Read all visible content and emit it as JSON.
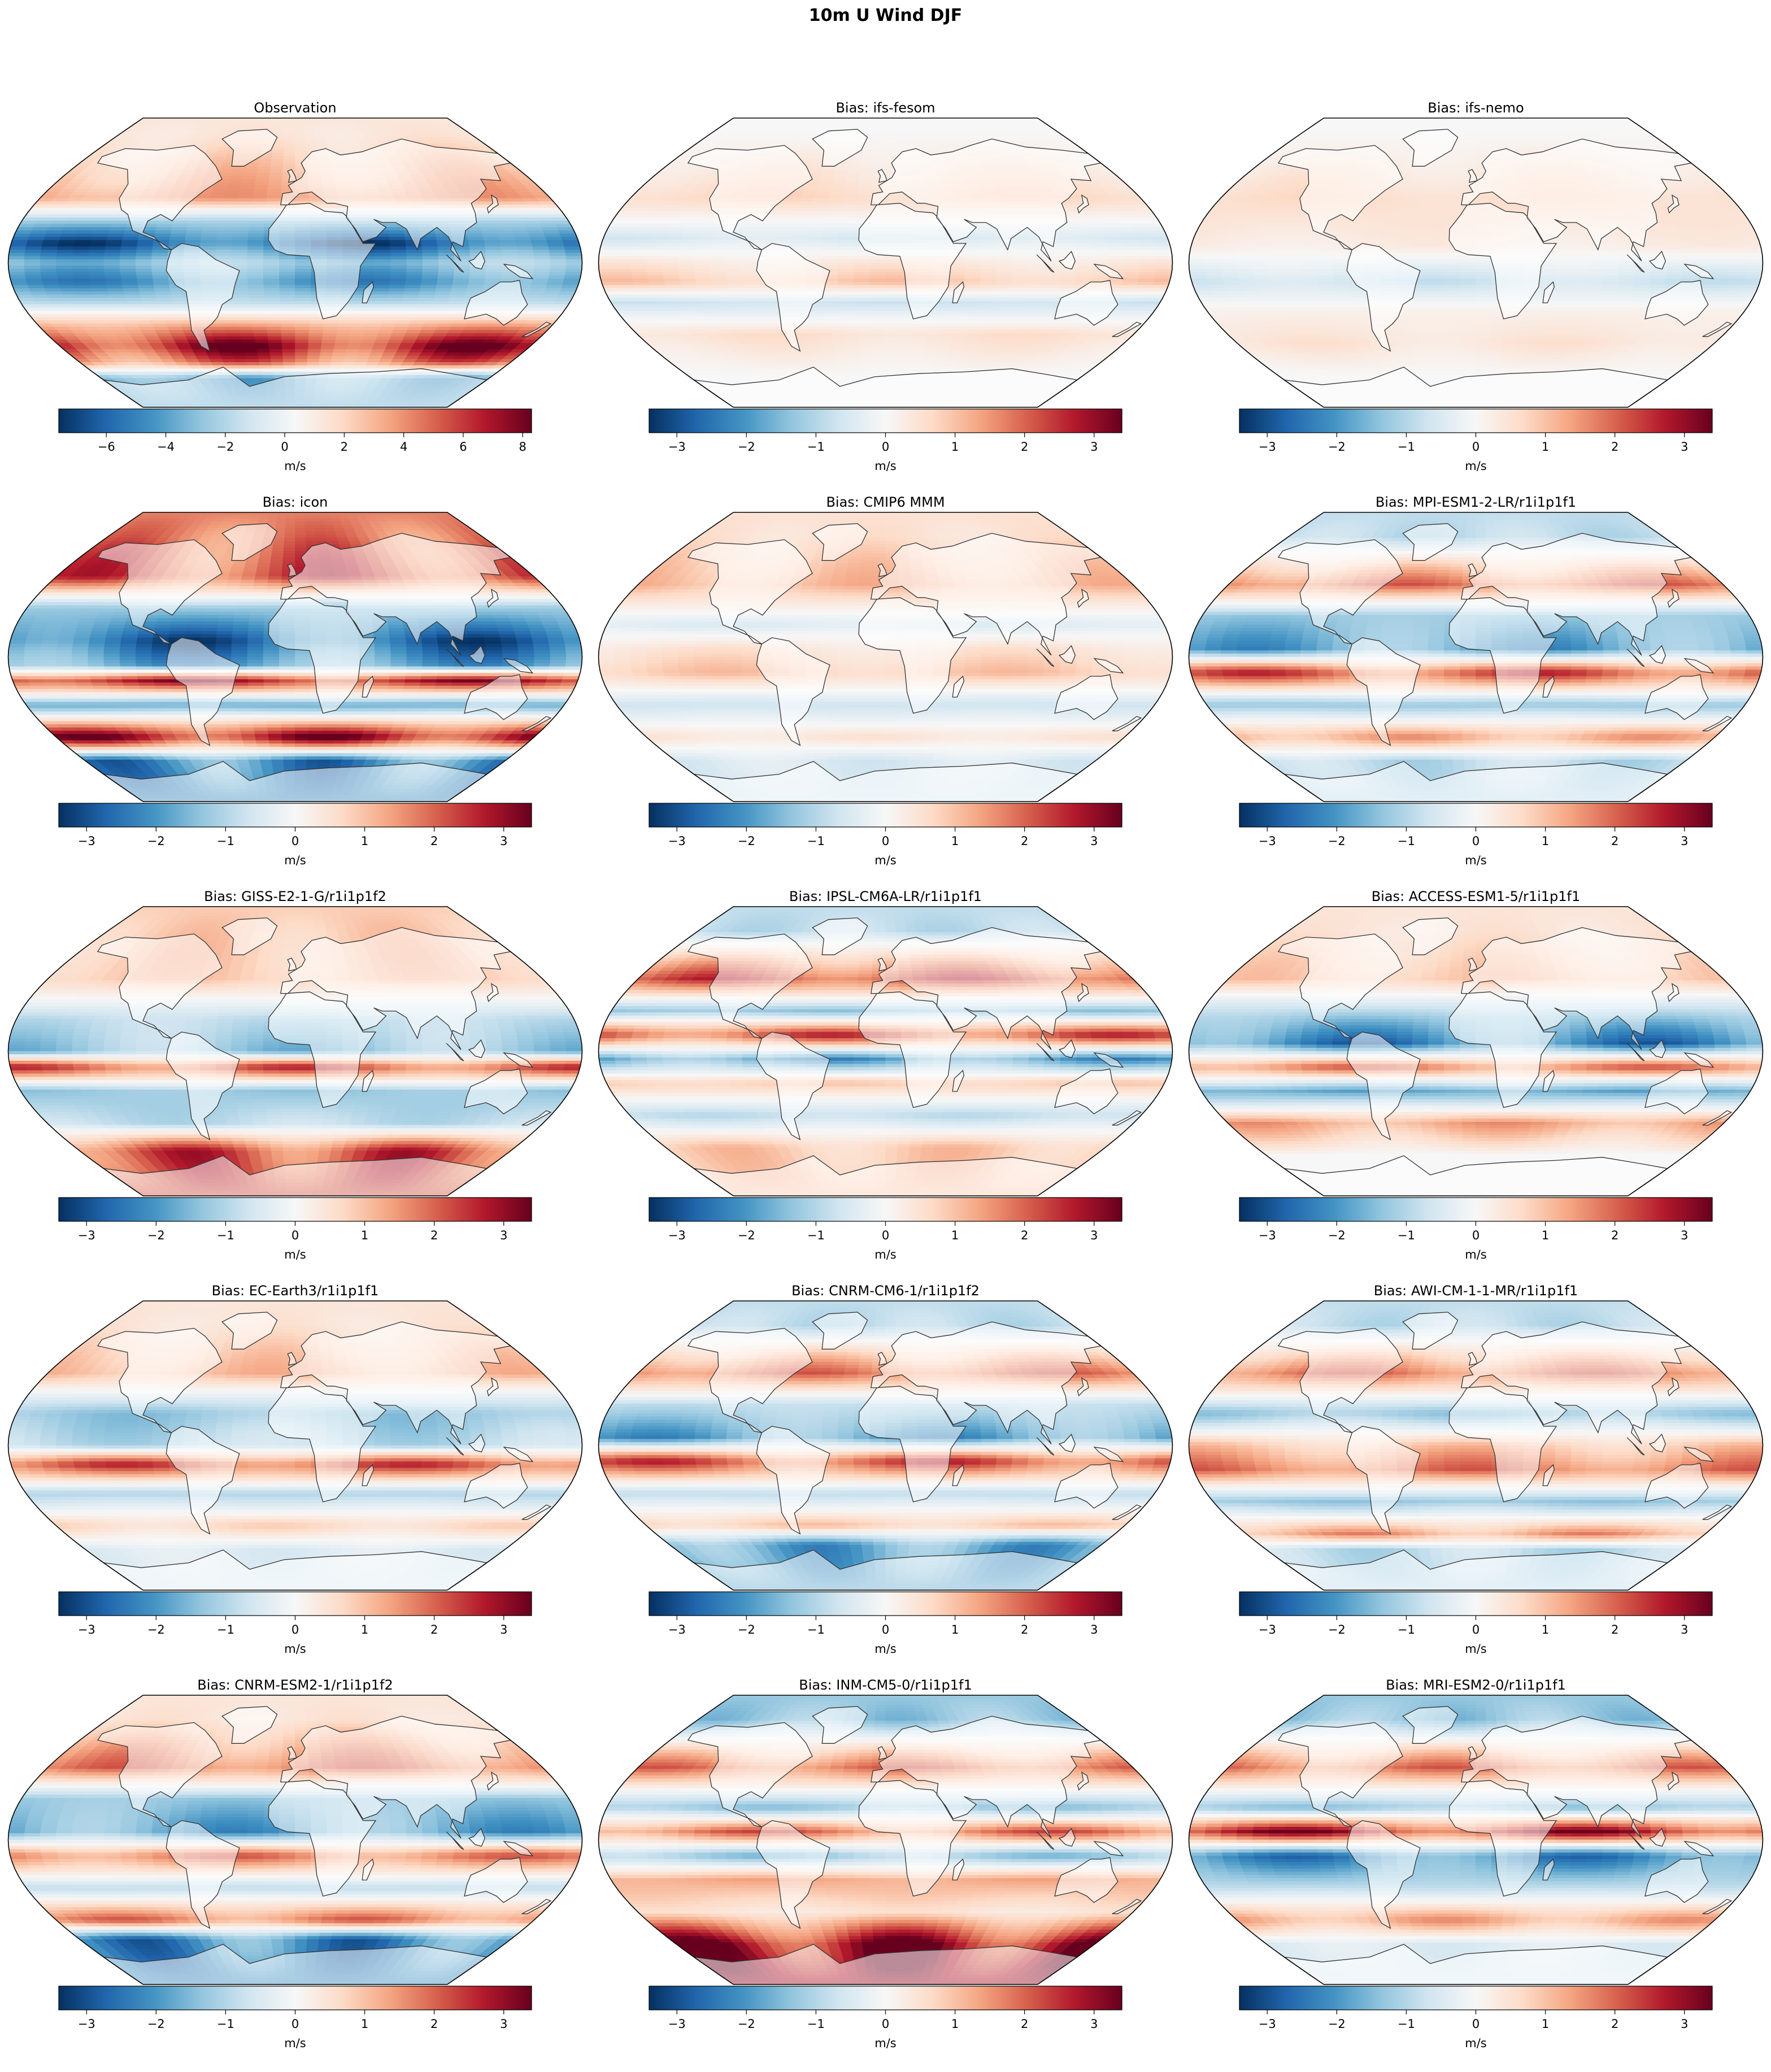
{
  "figure": {
    "title": "10m U Wind DJF",
    "colormap": "RdBu_r",
    "colormap_stops": [
      "#053061",
      "#2166ac",
      "#4393c3",
      "#92c5de",
      "#d1e5f0",
      "#f7f7f7",
      "#fddbc7",
      "#f4a582",
      "#d6604d",
      "#b2182b",
      "#67001f"
    ],
    "ocean_background": "#f4f4f4",
    "coastline_color": "#333333"
  },
  "panels": [
    {
      "title": "Observation",
      "units": "m/s",
      "vmin": -7.6,
      "vmax": 8.3,
      "ticks": [
        -6,
        -4,
        -2,
        0,
        2,
        4,
        6,
        8
      ],
      "zonal_pattern": [
        {
          "lat": 80,
          "v": 1.5
        },
        {
          "lat": 55,
          "v": 3
        },
        {
          "lat": 40,
          "v": 4
        },
        {
          "lat": 25,
          "v": -3
        },
        {
          "lat": 12,
          "v": -7
        },
        {
          "lat": 0,
          "v": -3
        },
        {
          "lat": -12,
          "v": -5
        },
        {
          "lat": -25,
          "v": -2
        },
        {
          "lat": -40,
          "v": 4
        },
        {
          "lat": -52,
          "v": 8
        },
        {
          "lat": -62,
          "v": 5
        },
        {
          "lat": -72,
          "v": -4
        }
      ]
    },
    {
      "title": "Bias: ifs-fesom",
      "units": "m/s",
      "vmin": -3.4,
      "vmax": 3.4,
      "ticks": [
        -3,
        -2,
        -1,
        0,
        1,
        2,
        3
      ],
      "zonal_pattern": [
        {
          "lat": 80,
          "v": 0
        },
        {
          "lat": 40,
          "v": 0.8
        },
        {
          "lat": 15,
          "v": -0.6
        },
        {
          "lat": 0,
          "v": 0.4
        },
        {
          "lat": -12,
          "v": 1.0
        },
        {
          "lat": -25,
          "v": -0.8
        },
        {
          "lat": -45,
          "v": 0.6
        },
        {
          "lat": -70,
          "v": 0
        }
      ]
    },
    {
      "title": "Bias: ifs-nemo",
      "units": "m/s",
      "vmin": -3.4,
      "vmax": 3.4,
      "ticks": [
        -3,
        -2,
        -1,
        0,
        1,
        2,
        3
      ],
      "zonal_pattern": [
        {
          "lat": 80,
          "v": 0
        },
        {
          "lat": 40,
          "v": 0.7
        },
        {
          "lat": 10,
          "v": 0.3
        },
        {
          "lat": -12,
          "v": -0.8
        },
        {
          "lat": -30,
          "v": 0.2
        },
        {
          "lat": -50,
          "v": 0.5
        },
        {
          "lat": -70,
          "v": 0
        }
      ]
    },
    {
      "title": "Bias: icon",
      "units": "m/s",
      "vmin": -3.4,
      "vmax": 3.4,
      "ticks": [
        -3,
        -2,
        -1,
        0,
        1,
        2,
        3
      ],
      "zonal_pattern": [
        {
          "lat": 75,
          "v": 2
        },
        {
          "lat": 50,
          "v": 2.5
        },
        {
          "lat": 30,
          "v": -1.5
        },
        {
          "lat": 10,
          "v": -3
        },
        {
          "lat": -5,
          "v": -2
        },
        {
          "lat": -15,
          "v": 3
        },
        {
          "lat": -30,
          "v": -2
        },
        {
          "lat": -50,
          "v": 3.4
        },
        {
          "lat": -65,
          "v": -2.5
        }
      ]
    },
    {
      "title": "Bias: CMIP6 MMM",
      "units": "m/s",
      "vmin": -3.4,
      "vmax": 3.4,
      "ticks": [
        -3,
        -2,
        -1,
        0,
        1,
        2,
        3
      ],
      "zonal_pattern": [
        {
          "lat": 75,
          "v": 0.6
        },
        {
          "lat": 45,
          "v": 1.2
        },
        {
          "lat": 20,
          "v": -0.5
        },
        {
          "lat": 5,
          "v": 0.5
        },
        {
          "lat": -10,
          "v": 1
        },
        {
          "lat": -30,
          "v": -0.8
        },
        {
          "lat": -50,
          "v": 0.5
        },
        {
          "lat": -65,
          "v": -0.6
        }
      ]
    },
    {
      "title": "Bias: MPI-ESM1-2-LR/r1i1p1f1",
      "units": "m/s",
      "vmin": -3.4,
      "vmax": 3.4,
      "ticks": [
        -3,
        -2,
        -1,
        0,
        1,
        2,
        3
      ],
      "zonal_pattern": [
        {
          "lat": 75,
          "v": -1
        },
        {
          "lat": 45,
          "v": 2
        },
        {
          "lat": 25,
          "v": -1.5
        },
        {
          "lat": 5,
          "v": -2
        },
        {
          "lat": -10,
          "v": 2.5
        },
        {
          "lat": -30,
          "v": -1.5
        },
        {
          "lat": -50,
          "v": 1.5
        },
        {
          "lat": -65,
          "v": -1
        }
      ]
    },
    {
      "title": "Bias: GISS-E2-1-G/r1i1p1f2",
      "units": "m/s",
      "vmin": -3.4,
      "vmax": 3.4,
      "ticks": [
        -3,
        -2,
        -1,
        0,
        1,
        2,
        3
      ],
      "zonal_pattern": [
        {
          "lat": 75,
          "v": 1
        },
        {
          "lat": 45,
          "v": 1
        },
        {
          "lat": 20,
          "v": -1
        },
        {
          "lat": 0,
          "v": -1.5
        },
        {
          "lat": -10,
          "v": 2.5
        },
        {
          "lat": -25,
          "v": -1.5
        },
        {
          "lat": -45,
          "v": -1
        },
        {
          "lat": -62,
          "v": 2.5
        }
      ]
    },
    {
      "title": "Bias: IPSL-CM6A-LR/r1i1p1f1",
      "units": "m/s",
      "vmin": -3.4,
      "vmax": 3.4,
      "ticks": [
        -3,
        -2,
        -1,
        0,
        1,
        2,
        3
      ],
      "zonal_pattern": [
        {
          "lat": 75,
          "v": -1
        },
        {
          "lat": 45,
          "v": 2.5
        },
        {
          "lat": 25,
          "v": -1.5
        },
        {
          "lat": 10,
          "v": 2.5
        },
        {
          "lat": -5,
          "v": -2
        },
        {
          "lat": -20,
          "v": 1
        },
        {
          "lat": -40,
          "v": -1
        },
        {
          "lat": -60,
          "v": 1
        }
      ]
    },
    {
      "title": "Bias: ACCESS-ESM1-5/r1i1p1f1",
      "units": "m/s",
      "vmin": -3.4,
      "vmax": 3.4,
      "ticks": [
        -3,
        -2,
        -1,
        0,
        1,
        2,
        3
      ],
      "zonal_pattern": [
        {
          "lat": 75,
          "v": 0.5
        },
        {
          "lat": 45,
          "v": 1
        },
        {
          "lat": 20,
          "v": -1.5
        },
        {
          "lat": 5,
          "v": -2.5
        },
        {
          "lat": -10,
          "v": 2
        },
        {
          "lat": -25,
          "v": -2
        },
        {
          "lat": -45,
          "v": 1.5
        },
        {
          "lat": -65,
          "v": 0
        }
      ]
    },
    {
      "title": "Bias: EC-Earth3/r1i1p1f1",
      "units": "m/s",
      "vmin": -3.4,
      "vmax": 3.4,
      "ticks": [
        -3,
        -2,
        -1,
        0,
        1,
        2,
        3
      ],
      "zonal_pattern": [
        {
          "lat": 75,
          "v": 0.5
        },
        {
          "lat": 45,
          "v": 1.2
        },
        {
          "lat": 20,
          "v": -1.5
        },
        {
          "lat": 0,
          "v": -1
        },
        {
          "lat": -12,
          "v": 2.5
        },
        {
          "lat": -30,
          "v": -1.2
        },
        {
          "lat": -50,
          "v": 0.8
        },
        {
          "lat": -65,
          "v": -0.5
        }
      ]
    },
    {
      "title": "Bias: CNRM-CM6-1/r1i1p1f2",
      "units": "m/s",
      "vmin": -3.4,
      "vmax": 3.4,
      "ticks": [
        -3,
        -2,
        -1,
        0,
        1,
        2,
        3
      ],
      "zonal_pattern": [
        {
          "lat": 75,
          "v": -1
        },
        {
          "lat": 45,
          "v": 2
        },
        {
          "lat": 25,
          "v": -1
        },
        {
          "lat": 5,
          "v": -2
        },
        {
          "lat": -10,
          "v": 2.5
        },
        {
          "lat": -30,
          "v": -1
        },
        {
          "lat": -50,
          "v": 1
        },
        {
          "lat": -62,
          "v": -2
        }
      ]
    },
    {
      "title": "Bias: AWI-CM-1-1-MR/r1i1p1f1",
      "units": "m/s",
      "vmin": -3.4,
      "vmax": 3.4,
      "ticks": [
        -3,
        -2,
        -1,
        0,
        1,
        2,
        3
      ],
      "zonal_pattern": [
        {
          "lat": 75,
          "v": -1
        },
        {
          "lat": 45,
          "v": 2
        },
        {
          "lat": 20,
          "v": -1.5
        },
        {
          "lat": 0,
          "v": 1
        },
        {
          "lat": -15,
          "v": 2
        },
        {
          "lat": -35,
          "v": -1.5
        },
        {
          "lat": -55,
          "v": 1.5
        },
        {
          "lat": -65,
          "v": -1
        }
      ]
    },
    {
      "title": "Bias: CNRM-ESM2-1/r1i1p1f2",
      "units": "m/s",
      "vmin": -3.4,
      "vmax": 3.4,
      "ticks": [
        -3,
        -2,
        -1,
        0,
        1,
        2,
        3
      ],
      "zonal_pattern": [
        {
          "lat": 75,
          "v": 0.5
        },
        {
          "lat": 45,
          "v": 2
        },
        {
          "lat": 25,
          "v": -1.5
        },
        {
          "lat": 5,
          "v": -2
        },
        {
          "lat": -10,
          "v": 2
        },
        {
          "lat": -30,
          "v": -1
        },
        {
          "lat": -50,
          "v": 2
        },
        {
          "lat": -62,
          "v": -2.5
        }
      ]
    },
    {
      "title": "Bias: INM-CM5-0/r1i1p1f1",
      "units": "m/s",
      "vmin": -3.4,
      "vmax": 3.4,
      "ticks": [
        -3,
        -2,
        -1,
        0,
        1,
        2,
        3
      ],
      "zonal_pattern": [
        {
          "lat": 75,
          "v": -1.5
        },
        {
          "lat": 45,
          "v": 2
        },
        {
          "lat": 20,
          "v": -1.5
        },
        {
          "lat": 5,
          "v": 2
        },
        {
          "lat": -10,
          "v": -1.5
        },
        {
          "lat": -25,
          "v": 1.5
        },
        {
          "lat": -45,
          "v": 0.5
        },
        {
          "lat": -65,
          "v": 3.4
        }
      ]
    },
    {
      "title": "Bias: MRI-ESM2-0/r1i1p1f1",
      "units": "m/s",
      "vmin": -3.4,
      "vmax": 3.4,
      "ticks": [
        -3,
        -2,
        -1,
        0,
        1,
        2,
        3
      ],
      "zonal_pattern": [
        {
          "lat": 75,
          "v": -1.5
        },
        {
          "lat": 45,
          "v": 2
        },
        {
          "lat": 20,
          "v": -1.5
        },
        {
          "lat": 5,
          "v": 3
        },
        {
          "lat": -10,
          "v": -2.5
        },
        {
          "lat": -30,
          "v": -1
        },
        {
          "lat": -50,
          "v": 1.5
        },
        {
          "lat": -65,
          "v": -0.5
        }
      ]
    }
  ]
}
